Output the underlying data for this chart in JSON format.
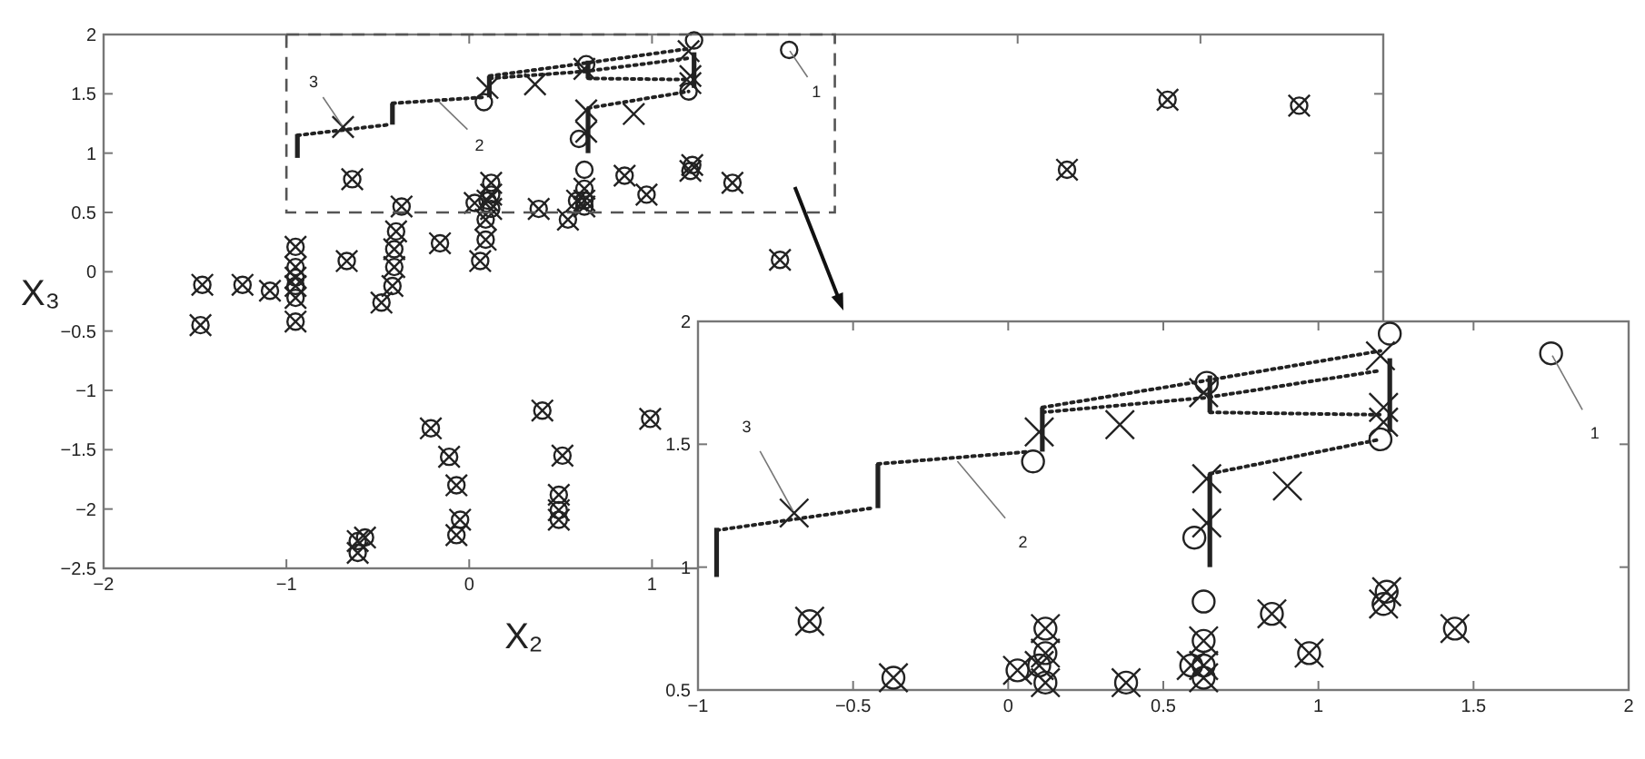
{
  "chart_data": [
    {
      "type": "scatter",
      "xlabel": "X₂",
      "ylabel": "X₃",
      "xlim": [
        -2,
        5
      ],
      "ylim": [
        -2.5,
        2
      ],
      "xticks": [
        -2,
        -1,
        0,
        1,
        {
          "value": 2,
          "label": null
        },
        {
          "value": 3,
          "label": null
        },
        {
          "value": 4,
          "label": null
        }
      ],
      "yticks": [
        -2.5,
        -2,
        -1.5,
        -1,
        -0.5,
        0,
        0.5,
        1,
        1.5,
        2
      ],
      "grid": false,
      "annotations": [
        {
          "text": "1",
          "x": 1.75,
          "y": 1.87
        },
        {
          "text": "2",
          "x": -0.17,
          "y": 1.44
        },
        {
          "text": "3",
          "x": -0.69,
          "y": 1.22
        }
      ],
      "series": [
        {
          "type": "scatter",
          "marker": "circle",
          "color": "#222222",
          "x": [
            -1.46,
            -1.47,
            -1.24,
            -1.09,
            -0.95,
            -0.95,
            -0.95,
            -0.95,
            -0.95,
            -0.95,
            -0.67,
            -0.48,
            -0.42,
            -0.41,
            -0.41,
            -0.4,
            -0.16,
            0.06,
            0.09,
            0.09,
            0.54,
            1.7,
            3.27,
            3.82,
            4.54,
            -0.21,
            -0.11,
            -0.07,
            -0.05,
            -0.07,
            0.4,
            0.51,
            0.49,
            0.49,
            0.49,
            0.99,
            -0.61,
            -0.57,
            -0.61,
            -0.64,
            -0.37,
            0.12,
            0.12,
            0.1,
            0.12,
            0.03,
            0.38,
            0.63,
            0.63,
            0.59,
            0.63,
            0.85,
            0.97,
            1.22,
            1.21,
            1.44,
            0.08,
            0.6,
            0.63,
            0.64,
            1.23,
            1.2,
            1.75
          ],
          "values": [
            -0.11,
            -0.45,
            -0.11,
            -0.16,
            0.21,
            0.04,
            -0.05,
            -0.12,
            -0.22,
            -0.42,
            0.09,
            -0.26,
            -0.12,
            0.04,
            0.19,
            0.34,
            0.24,
            0.09,
            0.27,
            0.44,
            0.44,
            0.1,
            0.86,
            1.45,
            1.4,
            -1.32,
            -1.56,
            -1.8,
            -2.09,
            -2.22,
            -1.17,
            -1.55,
            -1.88,
            -2.01,
            -2.09,
            -1.24,
            -2.27,
            -2.24,
            -2.37,
            0.78,
            0.55,
            0.75,
            0.65,
            0.6,
            0.53,
            0.58,
            0.53,
            0.7,
            0.6,
            0.6,
            0.55,
            0.81,
            0.65,
            0.9,
            0.85,
            0.75,
            1.43,
            1.12,
            0.86,
            1.75,
            1.95,
            1.52,
            1.87
          ]
        },
        {
          "type": "scatter",
          "marker": "cross",
          "color": "#222222",
          "x": [
            -1.46,
            -1.47,
            -1.24,
            -1.09,
            -0.95,
            -0.95,
            -0.95,
            -0.95,
            -0.95,
            -0.95,
            -0.67,
            -0.48,
            -0.42,
            -0.41,
            -0.41,
            -0.4,
            -0.16,
            0.06,
            0.09,
            0.09,
            0.54,
            1.7,
            3.27,
            3.82,
            4.54,
            -0.21,
            -0.11,
            -0.07,
            -0.05,
            -0.07,
            0.4,
            0.51,
            0.49,
            0.49,
            0.49,
            0.99,
            -0.61,
            -0.57,
            -0.61,
            -0.64,
            -0.37,
            0.12,
            0.12,
            0.1,
            0.12,
            0.03,
            0.38,
            0.63,
            0.63,
            0.59,
            0.63,
            0.85,
            0.97,
            1.22,
            1.21,
            1.44,
            -0.69,
            0.1,
            0.36,
            0.64,
            0.64,
            0.9,
            0.63,
            1.2,
            1.21,
            1.21
          ],
          "values": [
            -0.11,
            -0.45,
            -0.11,
            -0.16,
            0.21,
            0.04,
            -0.05,
            -0.12,
            -0.22,
            -0.42,
            0.09,
            -0.26,
            -0.12,
            0.04,
            0.19,
            0.34,
            0.24,
            0.09,
            0.27,
            0.44,
            0.44,
            0.1,
            0.86,
            1.45,
            1.4,
            -1.32,
            -1.56,
            -1.8,
            -2.09,
            -2.22,
            -1.17,
            -1.55,
            -1.88,
            -2.01,
            -2.09,
            -1.24,
            -2.27,
            -2.24,
            -2.37,
            0.78,
            0.55,
            0.75,
            0.65,
            0.6,
            0.53,
            0.58,
            0.53,
            0.7,
            0.6,
            0.6,
            0.55,
            0.81,
            0.65,
            0.9,
            0.85,
            0.75,
            1.22,
            1.55,
            1.58,
            1.36,
            1.18,
            1.33,
            1.71,
            1.86,
            1.65,
            1.59
          ]
        },
        {
          "type": "line",
          "marker": "none",
          "line_style": "dotted",
          "color": "#222222",
          "x": [
            -0.94,
            -0.44
          ],
          "values": [
            1.15,
            1.24
          ]
        },
        {
          "type": "line",
          "marker": "none",
          "line_style": "dotted",
          "color": "#222222",
          "x": [
            -0.42,
            0.07
          ],
          "values": [
            1.42,
            1.47
          ]
        },
        {
          "type": "line",
          "marker": "none",
          "line_style": "dotted",
          "color": "#222222",
          "x": [
            0.11,
            0.64,
            1.2
          ],
          "values": [
            1.65,
            1.76,
            1.88
          ]
        },
        {
          "type": "line",
          "marker": "none",
          "line_style": "dotted",
          "color": "#222222",
          "x": [
            0.11,
            0.64,
            1.2
          ],
          "values": [
            1.63,
            1.69,
            1.8
          ]
        },
        {
          "type": "line",
          "marker": "none",
          "line_style": "dotted",
          "color": "#222222",
          "x": [
            0.65,
            1.2
          ],
          "values": [
            1.63,
            1.62
          ]
        },
        {
          "type": "line",
          "marker": "none",
          "line_style": "dotted",
          "color": "#222222",
          "x": [
            0.65,
            1.2
          ],
          "values": [
            1.38,
            1.52
          ]
        },
        {
          "type": "line",
          "marker": "none",
          "line_style": "solid",
          "color": "#222222",
          "x": [
            -0.94,
            -0.94
          ],
          "values": [
            0.96,
            1.16
          ]
        },
        {
          "type": "line",
          "marker": "none",
          "line_style": "solid",
          "color": "#222222",
          "x": [
            -0.42,
            -0.42
          ],
          "values": [
            1.24,
            1.42
          ]
        },
        {
          "type": "line",
          "marker": "none",
          "line_style": "solid",
          "color": "#222222",
          "x": [
            0.11,
            0.11
          ],
          "values": [
            1.47,
            1.65
          ]
        },
        {
          "type": "line",
          "marker": "none",
          "line_style": "solid",
          "color": "#222222",
          "x": [
            0.65,
            0.65
          ],
          "values": [
            1.0,
            1.38
          ]
        },
        {
          "type": "line",
          "marker": "none",
          "line_style": "solid",
          "color": "#222222",
          "x": [
            0.65,
            0.65
          ],
          "values": [
            1.63,
            1.78
          ]
        },
        {
          "type": "line",
          "marker": "none",
          "line_style": "solid",
          "color": "#222222",
          "x": [
            1.23,
            1.23
          ],
          "values": [
            1.55,
            1.85
          ]
        }
      ]
    },
    {
      "type": "scatter",
      "xlim": [
        -1,
        2
      ],
      "ylim": [
        0.5,
        2
      ],
      "xticks": [
        -1,
        -0.5,
        0,
        0.5,
        1,
        1.5,
        2
      ],
      "yticks": [
        0.5,
        1,
        1.5,
        2
      ],
      "grid": false,
      "annotations": [
        {
          "text": "1",
          "x": 1.75,
          "y": 1.87
        },
        {
          "text": "2",
          "x": -0.17,
          "y": 1.44
        },
        {
          "text": "3",
          "x": -0.69,
          "y": 1.22
        }
      ],
      "series": [
        {
          "type": "scatter",
          "marker": "circle",
          "color": "#222222",
          "x": [
            -0.64,
            -0.37,
            0.12,
            0.12,
            0.1,
            0.12,
            0.03,
            0.38,
            0.63,
            0.63,
            0.59,
            0.63,
            0.85,
            0.97,
            1.22,
            1.21,
            1.44,
            0.08,
            0.6,
            0.63,
            0.64,
            1.23,
            1.2,
            1.75
          ],
          "values": [
            0.78,
            0.55,
            0.75,
            0.65,
            0.6,
            0.53,
            0.58,
            0.53,
            0.7,
            0.6,
            0.6,
            0.55,
            0.81,
            0.65,
            0.9,
            0.85,
            0.75,
            1.43,
            1.12,
            0.86,
            1.75,
            1.95,
            1.52,
            1.87
          ]
        },
        {
          "type": "scatter",
          "marker": "cross",
          "color": "#222222",
          "x": [
            -0.64,
            -0.37,
            0.12,
            0.12,
            0.1,
            0.12,
            0.03,
            0.38,
            0.63,
            0.63,
            0.59,
            0.63,
            0.85,
            0.97,
            1.22,
            1.21,
            1.44,
            -0.69,
            0.1,
            0.36,
            0.64,
            0.64,
            0.9,
            0.63,
            1.2,
            1.21,
            1.21
          ],
          "values": [
            0.78,
            0.55,
            0.75,
            0.65,
            0.6,
            0.53,
            0.58,
            0.53,
            0.7,
            0.6,
            0.6,
            0.55,
            0.81,
            0.65,
            0.9,
            0.85,
            0.75,
            1.22,
            1.55,
            1.58,
            1.36,
            1.18,
            1.33,
            1.71,
            1.86,
            1.65,
            1.59
          ]
        },
        {
          "type": "line",
          "marker": "none",
          "line_style": "dotted",
          "color": "#222222",
          "x": [
            -0.94,
            -0.44
          ],
          "values": [
            1.15,
            1.24
          ]
        },
        {
          "type": "line",
          "marker": "none",
          "line_style": "dotted",
          "color": "#222222",
          "x": [
            -0.42,
            0.07
          ],
          "values": [
            1.42,
            1.47
          ]
        },
        {
          "type": "line",
          "marker": "none",
          "line_style": "dotted",
          "color": "#222222",
          "x": [
            0.11,
            0.64,
            1.2
          ],
          "values": [
            1.65,
            1.76,
            1.88
          ]
        },
        {
          "type": "line",
          "marker": "none",
          "line_style": "dotted",
          "color": "#222222",
          "x": [
            0.11,
            0.64,
            1.2
          ],
          "values": [
            1.63,
            1.69,
            1.8
          ]
        },
        {
          "type": "line",
          "marker": "none",
          "line_style": "dotted",
          "color": "#222222",
          "x": [
            0.65,
            1.2
          ],
          "values": [
            1.63,
            1.62
          ]
        },
        {
          "type": "line",
          "marker": "none",
          "line_style": "dotted",
          "color": "#222222",
          "x": [
            0.65,
            1.2
          ],
          "values": [
            1.38,
            1.52
          ]
        },
        {
          "type": "line",
          "marker": "none",
          "line_style": "solid",
          "color": "#222222",
          "x": [
            -0.94,
            -0.94
          ],
          "values": [
            0.96,
            1.16
          ]
        },
        {
          "type": "line",
          "marker": "none",
          "line_style": "solid",
          "color": "#222222",
          "x": [
            -0.42,
            -0.42
          ],
          "values": [
            1.24,
            1.42
          ]
        },
        {
          "type": "line",
          "marker": "none",
          "line_style": "solid",
          "color": "#222222",
          "x": [
            0.11,
            0.11
          ],
          "values": [
            1.47,
            1.65
          ]
        },
        {
          "type": "line",
          "marker": "none",
          "line_style": "solid",
          "color": "#222222",
          "x": [
            0.65,
            0.65
          ],
          "values": [
            1.0,
            1.38
          ]
        },
        {
          "type": "line",
          "marker": "none",
          "line_style": "solid",
          "color": "#222222",
          "x": [
            0.65,
            0.65
          ],
          "values": [
            1.63,
            1.78
          ]
        },
        {
          "type": "line",
          "marker": "none",
          "line_style": "solid",
          "color": "#222222",
          "x": [
            1.23,
            1.23
          ],
          "values": [
            1.55,
            1.85
          ]
        }
      ]
    }
  ]
}
